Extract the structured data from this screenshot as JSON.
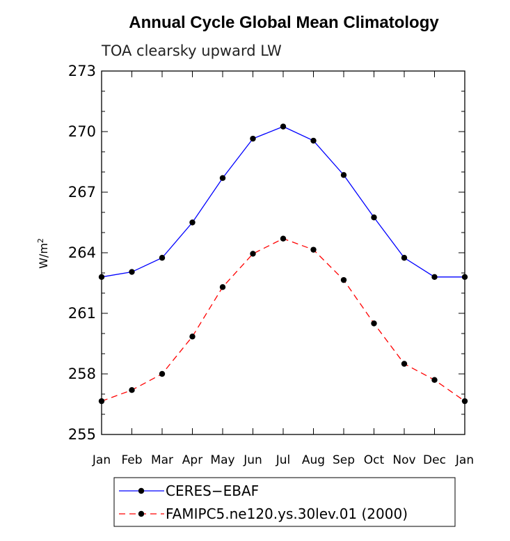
{
  "chart_data": {
    "type": "line",
    "title": "Annual Cycle Global Mean Climatology",
    "subtitle": "TOA clearsky upward LW",
    "ylabel": "W/m",
    "ylabel_sup": "2",
    "xlabel": "",
    "ylim": [
      255,
      273
    ],
    "yticks": [
      255,
      258,
      261,
      264,
      267,
      270,
      273
    ],
    "categories": [
      "Jan",
      "Feb",
      "Mar",
      "Apr",
      "May",
      "Jun",
      "Jul",
      "Aug",
      "Sep",
      "Oct",
      "Nov",
      "Dec",
      "Jan"
    ],
    "grid": false,
    "legend_position": "bottom",
    "series": [
      {
        "name": "CERES−EBAF",
        "color": "#0000ff",
        "dash": "solid",
        "marker": "circle",
        "values": [
          262.8,
          263.05,
          263.75,
          265.5,
          267.7,
          269.65,
          270.25,
          269.55,
          267.85,
          265.75,
          263.75,
          262.8,
          262.8
        ]
      },
      {
        "name": "FAMIPC5.ne120.ys.30lev.01 (2000)",
        "color": "#ff0000",
        "dash": "dashed",
        "marker": "circle",
        "values": [
          256.65,
          257.2,
          258.0,
          259.85,
          262.3,
          263.95,
          264.7,
          264.15,
          262.65,
          260.5,
          258.5,
          257.7,
          256.65
        ]
      }
    ]
  }
}
